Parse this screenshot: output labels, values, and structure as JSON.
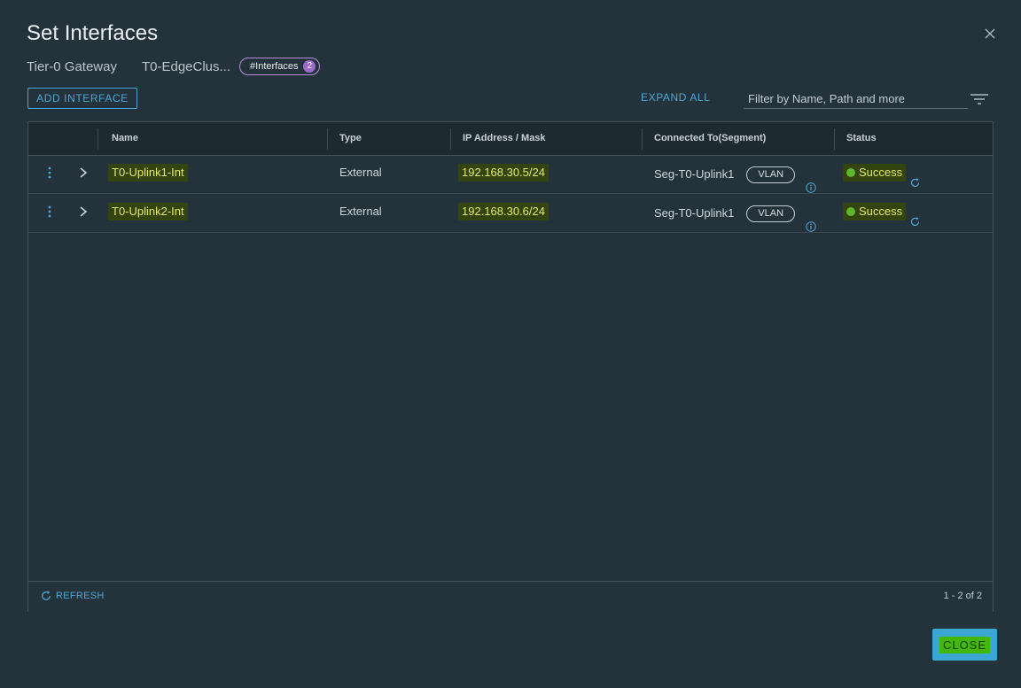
{
  "dialog": {
    "title": "Set Interfaces",
    "close_icon": "close-icon"
  },
  "subtitle": {
    "gateway_label": "Tier-0 Gateway",
    "gateway_name": "T0-EdgeClus...",
    "pill_label": "#Interfaces",
    "pill_count": "2"
  },
  "toolbar": {
    "add_label": "ADD INTERFACE",
    "expand_all_label": "EXPAND ALL",
    "filter_placeholder": "Filter by Name, Path and more",
    "filter_icon": "filter-icon"
  },
  "table": {
    "columns": [
      "Name",
      "Type",
      "IP Address / Mask",
      "Connected To(Segment)",
      "Status"
    ],
    "rows": [
      {
        "name": "T0-Uplink1-Int",
        "type": "External",
        "ip": "192.168.30.5/24",
        "segment": "Seg-T0-Uplink1",
        "segment_tag": "VLAN",
        "status": "Success"
      },
      {
        "name": "T0-Uplink2-Int",
        "type": "External",
        "ip": "192.168.30.6/24",
        "segment": "Seg-T0-Uplink1",
        "segment_tag": "VLAN",
        "status": "Success"
      }
    ]
  },
  "footer": {
    "refresh_label": "REFRESH",
    "pagination": "1 - 2 of 2",
    "close_label": "CLOSE"
  },
  "colors": {
    "accent": "#4ca7d6",
    "success": "#5fb52c",
    "highlight": "#e2e96a",
    "background": "#24323b"
  }
}
